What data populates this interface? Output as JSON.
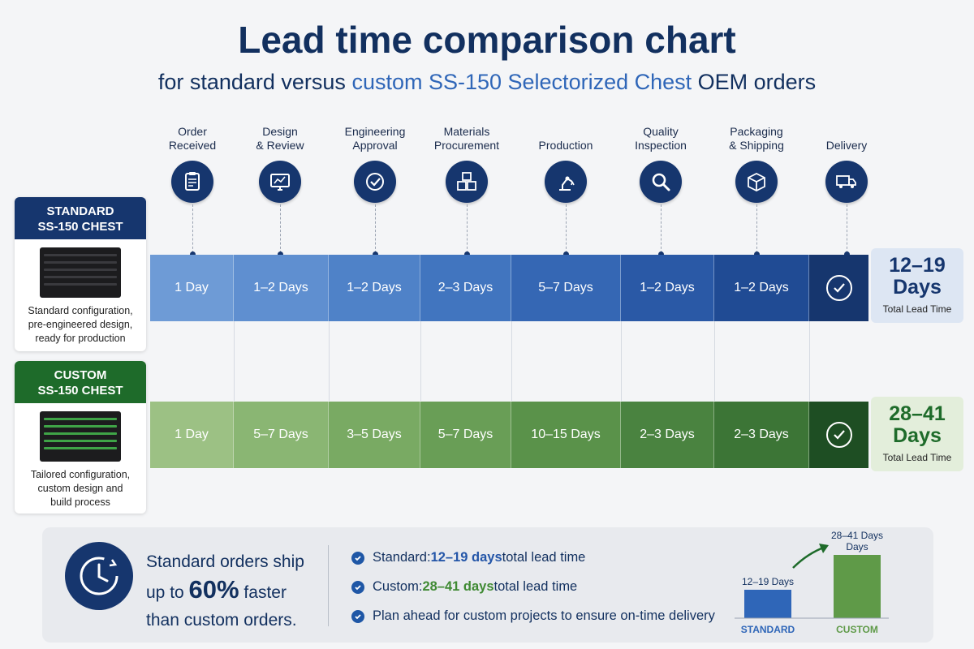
{
  "title": "Lead time comparison chart",
  "subtitle": {
    "lead": "for standard versus ",
    "accent": "custom SS-150 Selectorized Chest",
    "tail": " OEM orders"
  },
  "stages": [
    {
      "label": "Order\nReceived",
      "icon": "clipboard-icon"
    },
    {
      "label": "Design\n& Review",
      "icon": "monitor-chart-icon"
    },
    {
      "label": "Engineering\nApproval",
      "icon": "check-circle-icon"
    },
    {
      "label": "Materials\nProcurement",
      "icon": "boxes-icon"
    },
    {
      "label": "Production",
      "icon": "robot-arm-icon"
    },
    {
      "label": "Quality\nInspection",
      "icon": "magnifier-icon"
    },
    {
      "label": "Packaging\n& Shipping",
      "icon": "package-icon"
    },
    {
      "label": "Delivery",
      "icon": "truck-icon"
    }
  ],
  "products": {
    "standard": {
      "name": "STANDARD\nSS-150 CHEST",
      "desc": "Standard configuration,\npre-engineered design,\nready for production",
      "color": "#16366e"
    },
    "custom": {
      "name": "CUSTOM\nSS-150 CHEST",
      "desc": "Tailored configuration,\ncustom design and\nbuild process",
      "color": "#1e6b2a"
    }
  },
  "chart_data": {
    "type": "table",
    "categories": [
      "Order Received",
      "Design & Review",
      "Engineering Approval",
      "Materials Procurement",
      "Production",
      "Quality Inspection",
      "Packaging & Shipping",
      "Delivery"
    ],
    "series": [
      {
        "name": "STANDARD SS-150 CHEST",
        "values": [
          "1 Day",
          "1–2 Days",
          "1–2 Days",
          "2–3 Days",
          "5–7 Days",
          "1–2 Days",
          "1–2 Days",
          "✓"
        ],
        "colors": [
          "#6e9bd6",
          "#5f8fd0",
          "#4f82c8",
          "#4175bf",
          "#3567b4",
          "#2a59a6",
          "#204b94",
          "#16366e"
        ],
        "total": "12–19\nDays",
        "total_label": "Total Lead Time",
        "accent": "#16366e",
        "total_bg": "#dde6f3"
      },
      {
        "name": "CUSTOM SS-150 CHEST",
        "values": [
          "1 Day",
          "5–7 Days",
          "3–5 Days",
          "5–7 Days",
          "10–15 Days",
          "2–3 Days",
          "2–3 Days",
          "✓"
        ],
        "colors": [
          "#9cc184",
          "#8ab673",
          "#79aa63",
          "#699e56",
          "#5a924a",
          "#4a8340",
          "#3c7536",
          "#1e4e23"
        ],
        "total": "28–41\nDays",
        "total_label": "Total Lead Time",
        "accent": "#1e6b2a",
        "total_bg": "#e3eedb"
      }
    ]
  },
  "summary": {
    "headline_pre": "Standard orders ship",
    "headline_mid_pre": "up to ",
    "headline_big": "60%",
    "headline_mid_post": " faster",
    "headline_post": "than custom orders.",
    "bullets": [
      {
        "pre": "Standard: ",
        "hl": "12–19 days",
        "post": " total lead time",
        "tone": "blue"
      },
      {
        "pre": "Custom: ",
        "hl": "28–41 days",
        "post": " total lead time",
        "tone": "green"
      },
      {
        "pre": "Plan ahead for custom projects to ensure on-time delivery",
        "hl": "",
        "post": "",
        "tone": "plain"
      }
    ]
  },
  "mini_chart": {
    "type": "bar",
    "categories": [
      "STANDARD",
      "CUSTOM"
    ],
    "labels": [
      "12–19 Days",
      "28–41 Days\nDays"
    ],
    "values": [
      15.5,
      34.5
    ],
    "colors": [
      "#2f66b8",
      "#5f9a48"
    ]
  }
}
